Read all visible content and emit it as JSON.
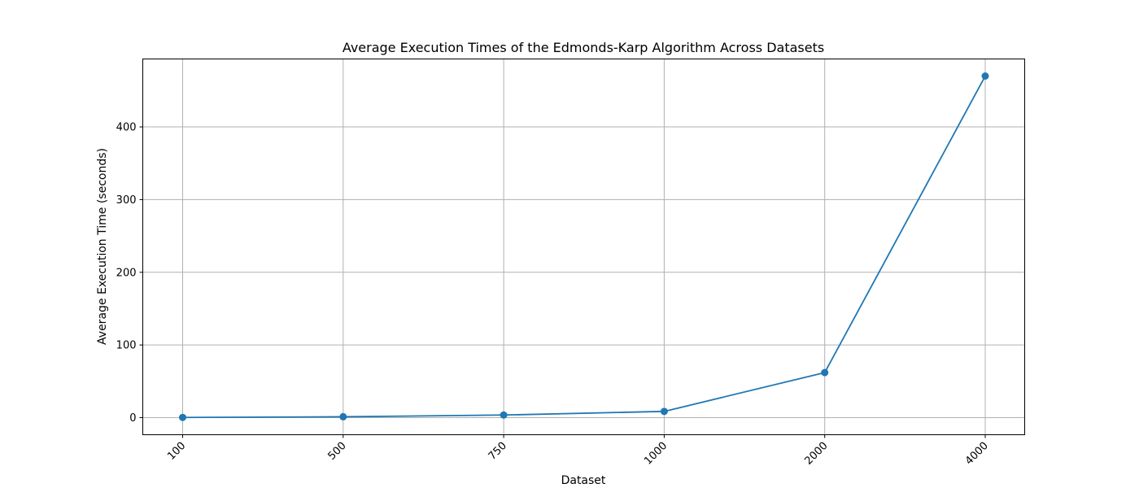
{
  "chart_data": {
    "type": "line",
    "title": "Average Execution Times of the Edmonds-Karp Algorithm Across Datasets",
    "xlabel": "Dataset",
    "ylabel": "Average Execution Time (seconds)",
    "categories": [
      "100",
      "500",
      "750",
      "1000",
      "2000",
      "4000"
    ],
    "series": [
      {
        "values": [
          0.3,
          1.2,
          3.6,
          8.6,
          62,
          470
        ],
        "color": "#1f77b4",
        "marker": "circle"
      }
    ],
    "ylim": [
      -23.5,
      493.5
    ],
    "yticks": [
      0,
      100,
      200,
      300,
      400
    ],
    "grid": true,
    "x_tick_rotation": 45
  }
}
